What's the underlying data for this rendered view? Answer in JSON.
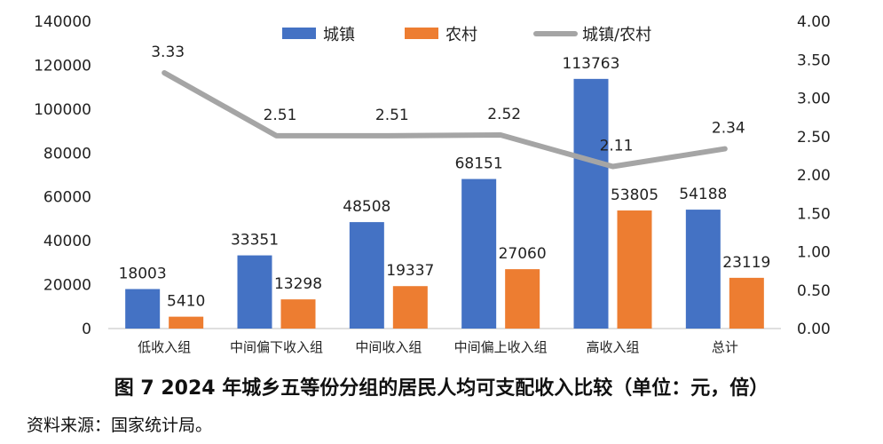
{
  "caption": "图 7   2024 年城乡五等份分组的居民人均可支配收入比较（单位：元，倍）",
  "source": "资料来源：国家统计局。",
  "chart_data": {
    "type": "bar",
    "categories": [
      "低收入组",
      "中间偏下收入组",
      "中间收入组",
      "中间偏上收入组",
      "高收入组",
      "总计"
    ],
    "series": [
      {
        "name": "城镇",
        "type": "bar",
        "axis": "left",
        "color": "#4472C4",
        "values": [
          18003,
          33351,
          48508,
          68151,
          113763,
          54188
        ],
        "labels": [
          "18003",
          "33351",
          "48508",
          "68151",
          "113763",
          "54188"
        ]
      },
      {
        "name": "农村",
        "type": "bar",
        "axis": "left",
        "color": "#ED7D31",
        "values": [
          5410,
          13298,
          19337,
          27060,
          53805,
          23119
        ],
        "labels": [
          "5410",
          "13298",
          "19337",
          "27060",
          "53805",
          "23119"
        ]
      },
      {
        "name": "城镇/农村",
        "type": "line",
        "axis": "right",
        "color": "#A5A5A5",
        "values": [
          3.33,
          2.51,
          2.51,
          2.52,
          2.11,
          2.34
        ],
        "labels": [
          "3.33",
          "2.51",
          "2.51",
          "2.52",
          "2.11",
          "2.34"
        ]
      }
    ],
    "y_left": {
      "min": 0,
      "max": 140000,
      "ticks": [
        "0",
        "20000",
        "40000",
        "60000",
        "80000",
        "100000",
        "120000",
        "140000"
      ]
    },
    "y_right": {
      "min": 0,
      "max": 4.0,
      "ticks": [
        "0.00",
        "0.50",
        "1.00",
        "1.50",
        "2.00",
        "2.50",
        "3.00",
        "3.50",
        "4.00"
      ]
    },
    "legend_position": "top",
    "grid": false
  }
}
